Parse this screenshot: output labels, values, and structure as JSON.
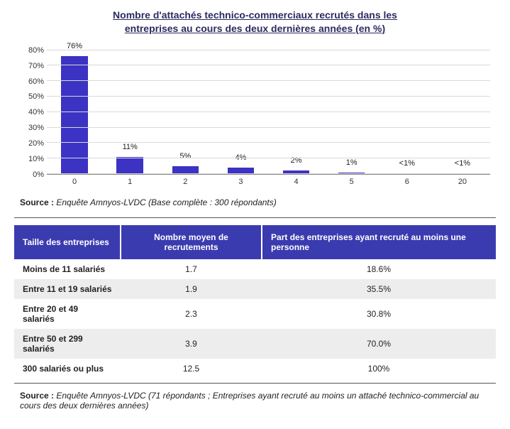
{
  "chart": {
    "type": "bar",
    "title_line1": "Nombre d'attachés technico-commerciaux recrutés dans les",
    "title_line2": "entreprises au cours des deux dernières années (en %)",
    "title_color": "#2b2b60",
    "title_fontsize": 14,
    "categories": [
      "0",
      "1",
      "2",
      "3",
      "4",
      "5",
      "6",
      "20"
    ],
    "values": [
      76,
      11,
      5,
      4,
      2,
      1,
      0.5,
      0.5
    ],
    "value_labels": [
      "76%",
      "11%",
      "5%",
      "4%",
      "2%",
      "1%",
      "<1%",
      "<1%"
    ],
    "bar_color": "#3c32c4",
    "ylim": [
      0,
      85
    ],
    "yticks": [
      0,
      10,
      20,
      30,
      40,
      50,
      60,
      70,
      80
    ],
    "ytick_labels": [
      "0%",
      "10%",
      "20%",
      "30%",
      "40%",
      "50%",
      "60%",
      "70%",
      "80%"
    ],
    "grid_color": "#d9d9d9",
    "axis_color": "#888888",
    "label_fontsize": 11,
    "background_color": "#ffffff",
    "bar_width": 0.48
  },
  "chart_source": {
    "label": "Source :",
    "text": "Enquête Amnyos-LVDC (Base complète : 300 répondants)"
  },
  "table": {
    "header_bg": "#3b3bb0",
    "header_fg": "#ffffff",
    "row_alt_bg": "#ededed",
    "columns": [
      "Taille des entreprises",
      "Nombre moyen de recrutements",
      "Part des entreprises ayant recruté au moins une personne"
    ],
    "rows": [
      [
        "Moins de 11 salariés",
        "1.7",
        "18.6%"
      ],
      [
        "Entre 11 et 19 salariés",
        "1.9",
        "35.5%"
      ],
      [
        "Entre 20 et 49 salariés",
        "2.3",
        "30.8%"
      ],
      [
        "Entre 50 et 299 salariés",
        "3.9",
        "70.0%"
      ],
      [
        "300 salariés ou plus",
        "12.5",
        "100%"
      ]
    ]
  },
  "table_source": {
    "label": "Source :",
    "text": "Enquête Amnyos-LVDC (71 répondants ; Entreprises ayant recruté au moins un attaché technico-commercial au cours des deux dernières années)"
  }
}
